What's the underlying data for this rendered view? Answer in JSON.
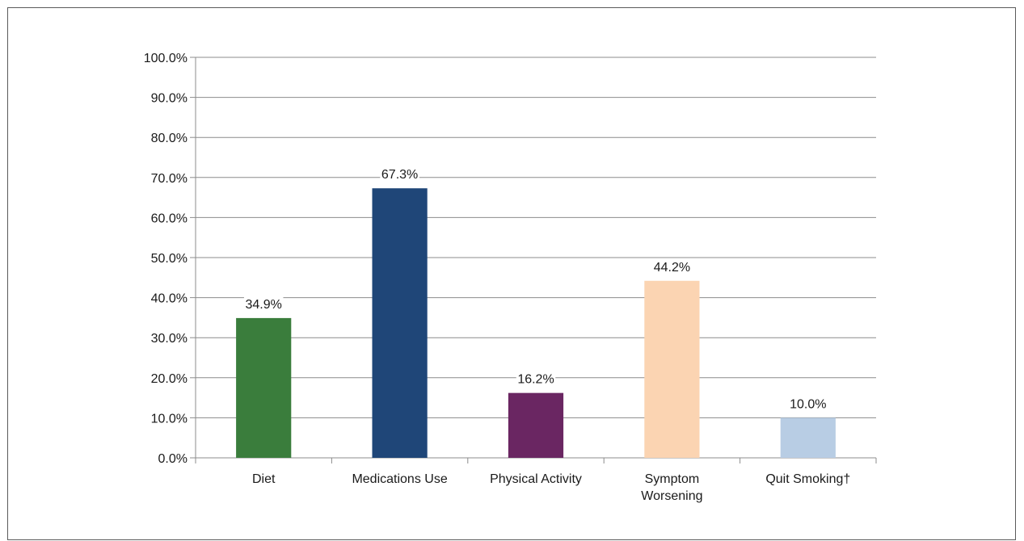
{
  "chart_data": {
    "type": "bar",
    "categories": [
      [
        "Diet"
      ],
      [
        "Medications Use"
      ],
      [
        "Physical Activity"
      ],
      [
        "Symptom",
        "Worsening"
      ],
      [
        "Quit Smoking†"
      ]
    ],
    "values": [
      34.9,
      67.3,
      16.2,
      44.2,
      10.0
    ],
    "value_labels": [
      "34.9%",
      "67.3%",
      "16.2%",
      "44.2%",
      "10.0%"
    ],
    "colors": [
      "#3a7d3c",
      "#1f4678",
      "#6a2662",
      "#fbd4b2",
      "#b8cde4"
    ],
    "ylim": [
      0,
      100
    ],
    "yticks": [
      0,
      10,
      20,
      30,
      40,
      50,
      60,
      70,
      80,
      90,
      100
    ],
    "ytick_labels": [
      "0.0%",
      "10.0%",
      "20.0%",
      "30.0%",
      "40.0%",
      "50.0%",
      "60.0%",
      "70.0%",
      "80.0%",
      "90.0%",
      "100.0%"
    ],
    "grid": true,
    "legend": "none",
    "title": "",
    "xlabel": "",
    "ylabel": ""
  }
}
